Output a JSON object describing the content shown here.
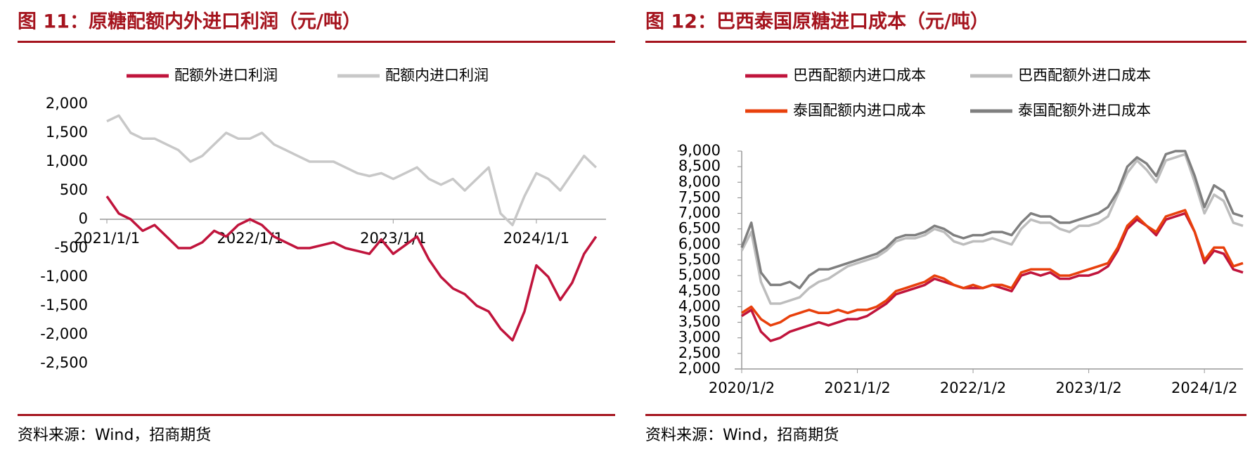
{
  "chart_data": [
    {
      "type": "line",
      "title": "图 11：原糖配额内外进口利润（元/吨）",
      "source": "资料来源：Wind，招商期货",
      "categories": [
        "2021/1/1",
        null,
        null,
        null,
        null,
        null,
        null,
        null,
        null,
        null,
        null,
        null,
        "2022/1/1",
        null,
        null,
        null,
        null,
        null,
        null,
        null,
        null,
        null,
        null,
        null,
        "2023/1/1",
        null,
        null,
        null,
        null,
        null,
        null,
        null,
        null,
        null,
        null,
        null,
        "2024/1/1",
        null,
        null,
        null,
        null,
        null
      ],
      "series": [
        {
          "name": "配额外进口利润",
          "color": "#c0143c",
          "values": [
            400,
            100,
            0,
            -200,
            -100,
            -300,
            -500,
            -500,
            -400,
            -200,
            -300,
            -100,
            0,
            -100,
            -300,
            -400,
            -500,
            -500,
            -450,
            -400,
            -500,
            -550,
            -600,
            -350,
            -600,
            -450,
            -300,
            -700,
            -1000,
            -1200,
            -1300,
            -1500,
            -1600,
            -1900,
            -2100,
            -1600,
            -800,
            -1000,
            -1400,
            -1100,
            -600,
            -300
          ]
        },
        {
          "name": "配额内进口利润",
          "color": "#c8c8c8",
          "values": [
            1700,
            1800,
            1500,
            1400,
            1400,
            1300,
            1200,
            1000,
            1100,
            1300,
            1500,
            1400,
            1400,
            1500,
            1300,
            1200,
            1100,
            1000,
            1000,
            1000,
            900,
            800,
            750,
            800,
            700,
            800,
            900,
            700,
            600,
            700,
            500,
            700,
            900,
            100,
            -100,
            400,
            800,
            700,
            500,
            800,
            1100,
            900
          ]
        }
      ],
      "ylim": [
        -2500,
        2000
      ],
      "yticks": [
        {
          "value": -2500,
          "label": "-2,500"
        },
        {
          "value": -2000,
          "label": "-2,000"
        },
        {
          "value": -1500,
          "label": "-1,500"
        },
        {
          "value": -1000,
          "label": "-1,000"
        },
        -500,
        0,
        500,
        {
          "value": 1000,
          "label": "1,000"
        },
        {
          "value": 1500,
          "label": "1,500"
        },
        {
          "value": 2000,
          "label": "2,000"
        }
      ],
      "legend": "top"
    },
    {
      "type": "line",
      "title": "图 12：巴西泰国原糖进口成本（元/吨）",
      "source": "资料来源：Wind，招商期货",
      "categories": [
        "2020/1/2",
        null,
        null,
        null,
        null,
        null,
        null,
        null,
        null,
        null,
        null,
        null,
        "2021/1/2",
        null,
        null,
        null,
        null,
        null,
        null,
        null,
        null,
        null,
        null,
        null,
        "2022/1/2",
        null,
        null,
        null,
        null,
        null,
        null,
        null,
        null,
        null,
        null,
        null,
        "2023/1/2",
        null,
        null,
        null,
        null,
        null,
        null,
        null,
        null,
        null,
        null,
        null,
        "2024/1/2",
        null,
        null,
        null,
        null
      ],
      "series": [
        {
          "name": "巴西配额内进口成本",
          "color": "#c0143c",
          "values": [
            3700,
            3900,
            3200,
            2900,
            3000,
            3200,
            3300,
            3400,
            3500,
            3400,
            3500,
            3600,
            3600,
            3700,
            3900,
            4100,
            4400,
            4500,
            4600,
            4700,
            4900,
            4800,
            4700,
            4600,
            4600,
            4600,
            4700,
            4600,
            4500,
            5000,
            5100,
            5000,
            5100,
            4900,
            4900,
            5000,
            5000,
            5100,
            5300,
            5800,
            6500,
            6800,
            6600,
            6300,
            6800,
            6900,
            7000,
            6400,
            5400,
            5800,
            5700,
            5200,
            5100
          ]
        },
        {
          "name": "巴西配额外进口成本",
          "color": "#bdbdbd",
          "values": [
            5800,
            6400,
            4800,
            4100,
            4100,
            4200,
            4300,
            4600,
            4800,
            4900,
            5100,
            5300,
            5400,
            5500,
            5600,
            5800,
            6100,
            6200,
            6200,
            6300,
            6500,
            6400,
            6100,
            6000,
            6100,
            6100,
            6200,
            6100,
            6000,
            6500,
            6800,
            6700,
            6700,
            6500,
            6400,
            6600,
            6600,
            6700,
            6900,
            7600,
            8300,
            8700,
            8400,
            8000,
            8700,
            8800,
            8900,
            8000,
            7000,
            7600,
            7400,
            6700,
            6600
          ]
        },
        {
          "name": "泰国配额内进口成本",
          "color": "#e8400c",
          "values": [
            3800,
            4000,
            3600,
            3400,
            3500,
            3700,
            3800,
            3900,
            3800,
            3800,
            3900,
            3800,
            3900,
            3900,
            4000,
            4200,
            4500,
            4600,
            4700,
            4800,
            5000,
            4900,
            4700,
            4600,
            4700,
            4600,
            4700,
            4700,
            4600,
            5100,
            5200,
            5200,
            5200,
            5000,
            5000,
            5100,
            5200,
            5300,
            5400,
            5900,
            6600,
            6900,
            6600,
            6400,
            6900,
            7000,
            7100,
            6400,
            5500,
            5900,
            5900,
            5300,
            5400
          ]
        },
        {
          "name": "泰国配额外进口成本",
          "color": "#7f7f7f",
          "values": [
            5900,
            6700,
            5100,
            4700,
            4700,
            4800,
            4600,
            5000,
            5200,
            5200,
            5300,
            5400,
            5500,
            5600,
            5700,
            5900,
            6200,
            6300,
            6300,
            6400,
            6600,
            6500,
            6300,
            6200,
            6300,
            6300,
            6400,
            6400,
            6300,
            6700,
            7000,
            6900,
            6900,
            6700,
            6700,
            6800,
            6900,
            7000,
            7200,
            7700,
            8500,
            8800,
            8600,
            8200,
            8900,
            9000,
            9000,
            8200,
            7200,
            7900,
            7700,
            7000,
            6900
          ]
        }
      ],
      "ylim": [
        2000,
        9000
      ],
      "yticks": [
        {
          "value": 2000,
          "label": "2,000"
        },
        {
          "value": 2500,
          "label": "2,500"
        },
        {
          "value": 3000,
          "label": "3,000"
        },
        {
          "value": 3500,
          "label": "3,500"
        },
        {
          "value": 4000,
          "label": "4,000"
        },
        {
          "value": 4500,
          "label": "4,500"
        },
        {
          "value": 5000,
          "label": "5,000"
        },
        {
          "value": 5500,
          "label": "5,500"
        },
        {
          "value": 6000,
          "label": "6,000"
        },
        {
          "value": 6500,
          "label": "6,500"
        },
        {
          "value": 7000,
          "label": "7,000"
        },
        {
          "value": 7500,
          "label": "7,500"
        },
        {
          "value": 8000,
          "label": "8,000"
        },
        {
          "value": 8500,
          "label": "8,500"
        },
        {
          "value": 9000,
          "label": "9,000"
        }
      ],
      "legend": "top"
    }
  ]
}
